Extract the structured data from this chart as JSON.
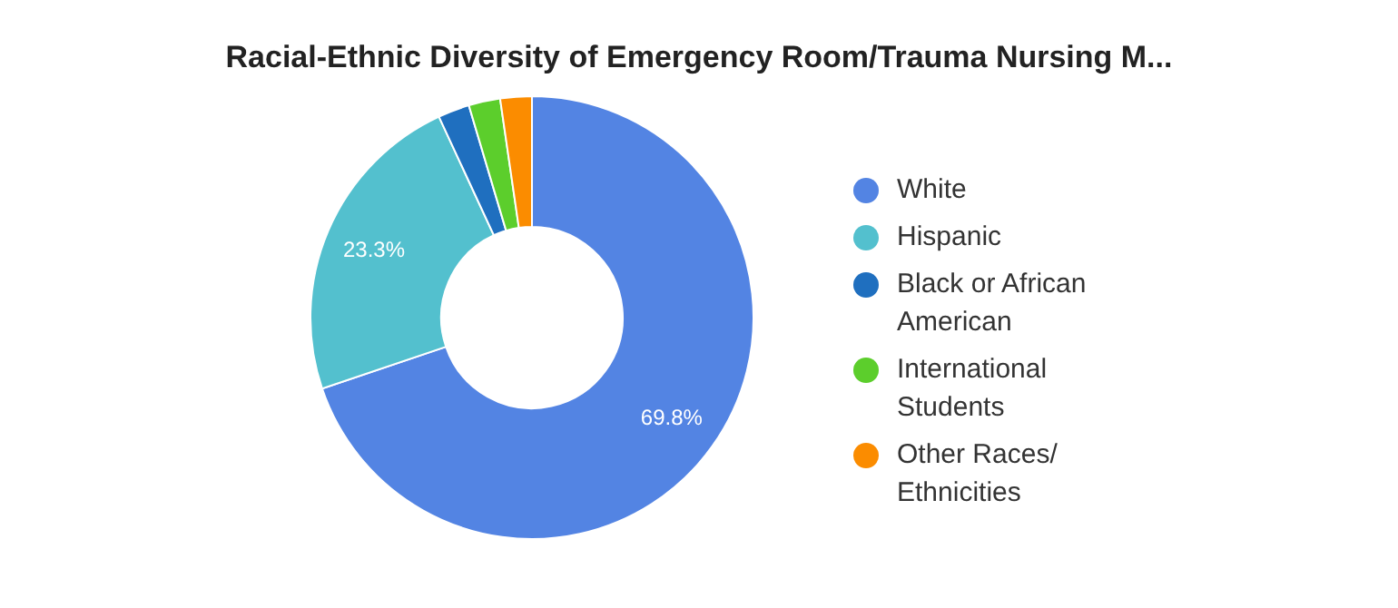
{
  "chart_data": {
    "type": "donut",
    "title": "Racial-Ethnic Diversity of Emergency Room/Trauma Nursing M...",
    "categories": [
      "White",
      "Hispanic",
      "Black or African American",
      "International Students",
      "Other Races/ Ethnicities"
    ],
    "values": [
      69.8,
      23.3,
      2.3,
      2.3,
      2.3
    ],
    "value_labels": [
      "69.8%",
      "23.3%",
      null,
      null,
      null
    ],
    "colors": [
      "#5384e3",
      "#53c0ce",
      "#1f6fbf",
      "#5cce2c",
      "#fb8c00"
    ],
    "legend": "right"
  }
}
